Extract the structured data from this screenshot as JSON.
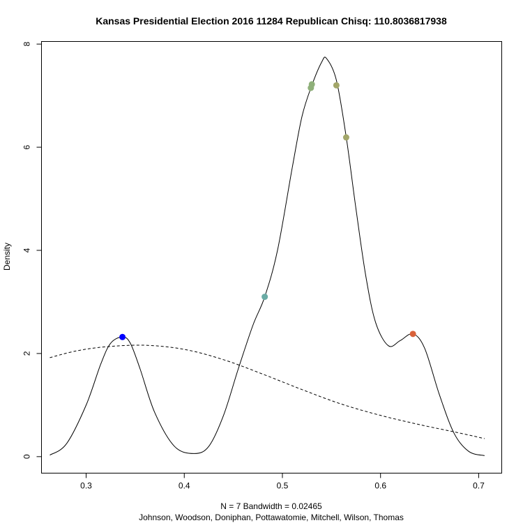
{
  "chart_data": {
    "type": "line",
    "title": "Kansas Presidential Election 2016 11284 Republican Chisq: 110.8036817938",
    "xlabel": "N = 7   Bandwidth = 0.02465",
    "subtitle": "Johnson, Woodson, Doniphan, Pottawatomie, Mitchell, Wilson, Thomas",
    "ylabel": "Density",
    "xlim": [
      0.2545,
      0.7235
    ],
    "ylim": [
      -0.32,
      8.05
    ],
    "x_ticks": [
      0.3,
      0.4,
      0.5,
      0.6,
      0.7
    ],
    "x_tick_labels": [
      "0.3",
      "0.4",
      "0.5",
      "0.6",
      "0.7"
    ],
    "y_ticks": [
      0,
      2,
      4,
      6,
      8
    ],
    "y_tick_labels": [
      "0",
      "2",
      "4",
      "6",
      "8"
    ],
    "grid": false,
    "series": [
      {
        "style": "solid",
        "color": "#000000",
        "x": [
          0.263,
          0.28,
          0.3,
          0.315,
          0.325,
          0.337,
          0.345,
          0.355,
          0.37,
          0.39,
          0.41,
          0.425,
          0.44,
          0.455,
          0.47,
          0.482,
          0.495,
          0.51,
          0.52,
          0.53,
          0.54,
          0.545,
          0.555,
          0.565,
          0.575,
          0.585,
          0.595,
          0.608,
          0.62,
          0.633,
          0.645,
          0.66,
          0.675,
          0.69,
          0.706
        ],
        "y": [
          0.03,
          0.25,
          1.0,
          1.8,
          2.2,
          2.32,
          2.2,
          1.7,
          0.85,
          0.2,
          0.06,
          0.2,
          0.8,
          1.7,
          2.55,
          3.1,
          4.0,
          5.6,
          6.6,
          7.2,
          7.65,
          7.72,
          7.3,
          6.2,
          4.8,
          3.5,
          2.6,
          2.15,
          2.25,
          2.38,
          2.1,
          1.2,
          0.45,
          0.1,
          0.02
        ]
      },
      {
        "style": "dashed",
        "color": "#000000",
        "x": [
          0.263,
          0.29,
          0.32,
          0.36,
          0.4,
          0.44,
          0.48,
          0.52,
          0.56,
          0.6,
          0.64,
          0.68,
          0.706
        ],
        "y": [
          1.92,
          2.05,
          2.13,
          2.16,
          2.08,
          1.88,
          1.6,
          1.3,
          1.02,
          0.8,
          0.62,
          0.46,
          0.35
        ]
      }
    ],
    "points": [
      {
        "x": 0.337,
        "y": 2.32,
        "color": "#0000ff"
      },
      {
        "x": 0.482,
        "y": 3.1,
        "color": "#6aaba5"
      },
      {
        "x": 0.529,
        "y": 7.15,
        "color": "#8fb07a"
      },
      {
        "x": 0.53,
        "y": 7.22,
        "color": "#8fb07a"
      },
      {
        "x": 0.555,
        "y": 7.2,
        "color": "#a3a76a"
      },
      {
        "x": 0.565,
        "y": 6.19,
        "color": "#a3a76a"
      },
      {
        "x": 0.633,
        "y": 2.38,
        "color": "#d9623a"
      }
    ]
  }
}
